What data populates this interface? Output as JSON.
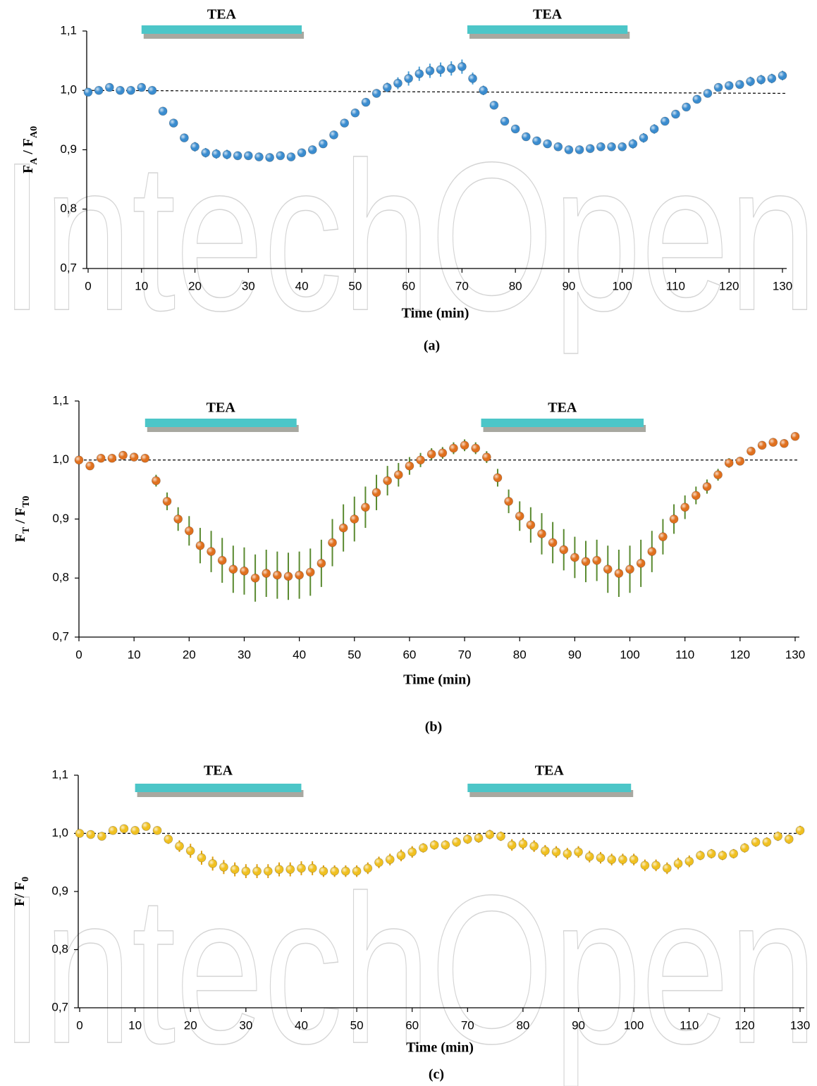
{
  "watermark": "IntechOpen",
  "chart_data": [
    {
      "type": "scatter",
      "caption": "(a)",
      "x_label": "Time (min)",
      "y_label": [
        {
          "text": "F"
        },
        {
          "text": "A",
          "sub": true
        },
        {
          "text": " / F"
        },
        {
          "text": "A0",
          "sub": true
        }
      ],
      "xlim": [
        0,
        130
      ],
      "xticks": [
        0,
        10,
        20,
        30,
        40,
        50,
        60,
        70,
        80,
        90,
        100,
        110,
        120,
        130
      ],
      "ylim": [
        0.7,
        1.1
      ],
      "yticks": [
        {
          "value": 0.7,
          "label": "0,7"
        },
        {
          "value": 0.8,
          "label": "0,8"
        },
        {
          "value": 0.9,
          "label": "0,9"
        },
        {
          "value": 1.0,
          "label": "1,0"
        },
        {
          "value": 1.1,
          "label": "1,1"
        }
      ],
      "hline": [
        1.0,
        0.995
      ],
      "annotations": [
        {
          "text": "TEA",
          "x": [
            10,
            40
          ]
        },
        {
          "text": "TEA",
          "x": [
            71,
            101
          ]
        }
      ],
      "x": [
        0,
        2,
        4,
        6,
        8,
        10,
        12,
        14,
        16,
        18,
        20,
        22,
        24,
        26,
        28,
        30,
        32,
        34,
        36,
        38,
        40,
        42,
        44,
        46,
        48,
        50,
        52,
        54,
        56,
        58,
        60,
        62,
        64,
        66,
        68,
        70,
        72,
        74,
        76,
        78,
        80,
        82,
        84,
        86,
        88,
        90,
        92,
        94,
        96,
        98,
        100,
        102,
        104,
        106,
        108,
        110,
        112,
        114,
        116,
        118,
        120,
        122,
        124,
        126,
        128,
        130
      ],
      "series": [
        {
          "color": "#3a8ccf",
          "error_color": "#4a9fd8",
          "values": [
            0.997,
            1.0,
            1.005,
            1.0,
            1.0,
            1.005,
            1.0,
            0.965,
            0.945,
            0.92,
            0.905,
            0.895,
            0.893,
            0.892,
            0.89,
            0.89,
            0.888,
            0.887,
            0.89,
            0.888,
            0.895,
            0.9,
            0.91,
            0.925,
            0.945,
            0.962,
            0.98,
            0.995,
            1.005,
            1.012,
            1.02,
            1.028,
            1.033,
            1.035,
            1.037,
            1.04,
            1.02,
            1.0,
            0.975,
            0.948,
            0.935,
            0.922,
            0.915,
            0.91,
            0.905,
            0.9,
            0.9,
            0.902,
            0.905,
            0.905,
            0.905,
            0.91,
            0.92,
            0.935,
            0.948,
            0.96,
            0.972,
            0.985,
            0.995,
            1.005,
            1.008,
            1.01,
            1.015,
            1.018,
            1.02,
            1.025
          ],
          "errors": [
            0.004,
            0.004,
            0.004,
            0.004,
            0.004,
            0.004,
            0.004,
            0.005,
            0.005,
            0.006,
            0.008,
            0.008,
            0.008,
            0.008,
            0.007,
            0.007,
            0.007,
            0.006,
            0.006,
            0.006,
            0.006,
            0.006,
            0.006,
            0.006,
            0.006,
            0.006,
            0.007,
            0.007,
            0.008,
            0.01,
            0.012,
            0.012,
            0.012,
            0.012,
            0.012,
            0.012,
            0.01,
            0.008,
            0.006,
            0.006,
            0.006,
            0.006,
            0.006,
            0.006,
            0.006,
            0.006,
            0.006,
            0.006,
            0.006,
            0.006,
            0.006,
            0.008,
            0.008,
            0.008,
            0.006,
            0.006,
            0.006,
            0.006,
            0.006,
            0.006,
            0.006,
            0.006,
            0.008,
            0.008,
            0.008,
            0.008
          ]
        }
      ]
    },
    {
      "type": "scatter",
      "caption": "(b)",
      "x_label": "Time (min)",
      "y_label": [
        {
          "text": "F"
        },
        {
          "text": "T",
          "sub": true
        },
        {
          "text": " / F"
        },
        {
          "text": "T0",
          "sub": true
        }
      ],
      "xlim": [
        0,
        130
      ],
      "xticks": [
        0,
        10,
        20,
        30,
        40,
        50,
        60,
        70,
        80,
        90,
        100,
        110,
        120,
        130
      ],
      "ylim": [
        0.7,
        1.1
      ],
      "yticks": [
        {
          "value": 0.7,
          "label": "0,7"
        },
        {
          "value": 0.8,
          "label": "0,8"
        },
        {
          "value": 0.9,
          "label": "0,9"
        },
        {
          "value": 1.0,
          "label": "1,0"
        },
        {
          "value": 1.1,
          "label": "1,1"
        }
      ],
      "hline": [
        1.0,
        1.0
      ],
      "annotations": [
        {
          "text": "TEA",
          "x": [
            12,
            39.5
          ]
        },
        {
          "text": "TEA",
          "x": [
            73,
            102.5
          ]
        }
      ],
      "x": [
        0,
        2,
        4,
        6,
        8,
        10,
        12,
        14,
        16,
        18,
        20,
        22,
        24,
        26,
        28,
        30,
        32,
        34,
        36,
        38,
        40,
        42,
        44,
        46,
        48,
        50,
        52,
        54,
        56,
        58,
        60,
        62,
        64,
        66,
        68,
        70,
        72,
        74,
        76,
        78,
        80,
        82,
        84,
        86,
        88,
        90,
        92,
        94,
        96,
        98,
        100,
        102,
        104,
        106,
        108,
        110,
        112,
        114,
        116,
        118,
        120,
        122,
        124,
        126,
        128,
        130
      ],
      "series": [
        {
          "color": "#e0701e",
          "error_color": "#5a8a30",
          "values": [
            1.0,
            0.99,
            1.003,
            1.003,
            1.008,
            1.005,
            1.003,
            0.965,
            0.93,
            0.9,
            0.88,
            0.855,
            0.845,
            0.83,
            0.815,
            0.812,
            0.8,
            0.808,
            0.805,
            0.803,
            0.805,
            0.81,
            0.825,
            0.86,
            0.885,
            0.9,
            0.92,
            0.945,
            0.965,
            0.975,
            0.99,
            1.0,
            1.01,
            1.012,
            1.02,
            1.025,
            1.02,
            1.005,
            0.97,
            0.93,
            0.905,
            0.89,
            0.875,
            0.86,
            0.848,
            0.835,
            0.828,
            0.83,
            0.815,
            0.808,
            0.815,
            0.825,
            0.845,
            0.87,
            0.9,
            0.92,
            0.94,
            0.955,
            0.975,
            0.995,
            0.998,
            1.015,
            1.025,
            1.03,
            1.028,
            1.04
          ],
          "errors": [
            0.004,
            0.004,
            0.004,
            0.004,
            0.004,
            0.004,
            0.004,
            0.01,
            0.015,
            0.02,
            0.025,
            0.03,
            0.035,
            0.038,
            0.04,
            0.04,
            0.04,
            0.04,
            0.04,
            0.04,
            0.04,
            0.04,
            0.04,
            0.04,
            0.04,
            0.038,
            0.035,
            0.03,
            0.025,
            0.02,
            0.015,
            0.012,
            0.01,
            0.01,
            0.01,
            0.01,
            0.01,
            0.01,
            0.015,
            0.02,
            0.025,
            0.03,
            0.035,
            0.035,
            0.035,
            0.035,
            0.035,
            0.035,
            0.04,
            0.04,
            0.04,
            0.04,
            0.035,
            0.03,
            0.025,
            0.02,
            0.015,
            0.012,
            0.01,
            0.008,
            0.006,
            0.005,
            0.005,
            0.005,
            0.005,
            0.005
          ]
        }
      ]
    },
    {
      "type": "scatter",
      "caption": "(c)",
      "x_label": "Time (min)",
      "y_label": [
        {
          "text": "F/  F"
        },
        {
          "text": "0",
          "sub": true
        }
      ],
      "xlim": [
        0,
        130
      ],
      "xticks": [
        0,
        10,
        20,
        30,
        40,
        50,
        60,
        70,
        80,
        90,
        100,
        110,
        120,
        130
      ],
      "ylim": [
        0.7,
        1.1
      ],
      "yticks": [
        {
          "value": 0.7,
          "label": "0,7"
        },
        {
          "value": 0.8,
          "label": "0,8"
        },
        {
          "value": 0.9,
          "label": "0,9"
        },
        {
          "value": 1.0,
          "label": "1,0"
        },
        {
          "value": 1.1,
          "label": "1,1"
        }
      ],
      "hline": [
        1.0,
        1.0
      ],
      "annotations": [
        {
          "text": "TEA",
          "x": [
            10,
            40
          ]
        },
        {
          "text": "TEA",
          "x": [
            70,
            99.5
          ]
        }
      ],
      "x": [
        0,
        2,
        4,
        6,
        8,
        10,
        12,
        14,
        16,
        18,
        20,
        22,
        24,
        26,
        28,
        30,
        32,
        34,
        36,
        38,
        40,
        42,
        44,
        46,
        48,
        50,
        52,
        54,
        56,
        58,
        60,
        62,
        64,
        66,
        68,
        70,
        72,
        74,
        76,
        78,
        80,
        82,
        84,
        86,
        88,
        90,
        92,
        94,
        96,
        98,
        100,
        102,
        104,
        106,
        108,
        110,
        112,
        114,
        116,
        118,
        120,
        122,
        124,
        126,
        128,
        130
      ],
      "series": [
        {
          "color": "#f0c020",
          "error_color": "#e0a010",
          "values": [
            1.0,
            0.998,
            0.995,
            1.005,
            1.008,
            1.005,
            1.012,
            1.005,
            0.99,
            0.978,
            0.97,
            0.958,
            0.948,
            0.942,
            0.938,
            0.935,
            0.935,
            0.935,
            0.938,
            0.938,
            0.94,
            0.94,
            0.935,
            0.935,
            0.935,
            0.935,
            0.94,
            0.95,
            0.955,
            0.962,
            0.968,
            0.975,
            0.98,
            0.98,
            0.985,
            0.99,
            0.992,
            0.998,
            0.995,
            0.98,
            0.982,
            0.978,
            0.97,
            0.968,
            0.965,
            0.968,
            0.96,
            0.958,
            0.955,
            0.955,
            0.955,
            0.945,
            0.945,
            0.94,
            0.948,
            0.952,
            0.962,
            0.965,
            0.962,
            0.965,
            0.975,
            0.985,
            0.985,
            0.995,
            0.99,
            1.005
          ],
          "errors": [
            0.004,
            0.004,
            0.004,
            0.004,
            0.004,
            0.004,
            0.005,
            0.006,
            0.008,
            0.01,
            0.012,
            0.012,
            0.012,
            0.012,
            0.012,
            0.012,
            0.012,
            0.012,
            0.012,
            0.012,
            0.012,
            0.012,
            0.01,
            0.01,
            0.01,
            0.01,
            0.01,
            0.01,
            0.01,
            0.01,
            0.01,
            0.008,
            0.008,
            0.008,
            0.008,
            0.008,
            0.008,
            0.008,
            0.008,
            0.01,
            0.01,
            0.01,
            0.01,
            0.01,
            0.01,
            0.01,
            0.01,
            0.01,
            0.01,
            0.01,
            0.01,
            0.01,
            0.01,
            0.01,
            0.01,
            0.01,
            0.008,
            0.008,
            0.008,
            0.008,
            0.008,
            0.008,
            0.008,
            0.008,
            0.008,
            0.008
          ]
        }
      ]
    }
  ]
}
